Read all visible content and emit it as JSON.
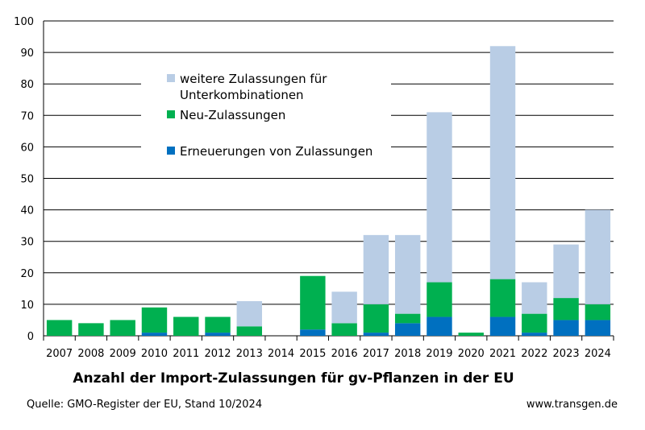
{
  "chart_data": {
    "type": "bar",
    "stacked": true,
    "title": "Anzahl der Import-Zulassungen für gv-Pflanzen in der EU",
    "xlabel": "",
    "ylabel": "",
    "ylim": [
      0,
      100
    ],
    "yticks": [
      0,
      10,
      20,
      30,
      40,
      50,
      60,
      70,
      80,
      90,
      100
    ],
    "grid": true,
    "legend_position": "top-left",
    "categories": [
      "2007",
      "2008",
      "2009",
      "2010",
      "2011",
      "2012",
      "2013",
      "2014",
      "2015",
      "2016",
      "2017",
      "2018",
      "2019",
      "2020",
      "2021",
      "2022",
      "2023",
      "2024"
    ],
    "series": [
      {
        "name": "Erneuerungen von Zulassungen",
        "color": "#0070C0",
        "values": [
          0,
          0,
          0,
          1,
          0,
          1,
          0,
          0,
          2,
          0,
          1,
          4,
          6,
          0,
          6,
          1,
          5,
          5
        ]
      },
      {
        "name": "Neu-Zulassungen",
        "color": "#00B050",
        "values": [
          5,
          4,
          5,
          8,
          6,
          5,
          3,
          0,
          17,
          4,
          9,
          3,
          11,
          1,
          12,
          6,
          7,
          5
        ]
      },
      {
        "name": "weitere Zulassungen für Unterkombinationen",
        "color": "#B9CDE5",
        "values": [
          0,
          0,
          0,
          0,
          0,
          0,
          8,
          0,
          0,
          10,
          22,
          25,
          54,
          0,
          74,
          10,
          17,
          30
        ]
      }
    ],
    "legend_lines": [
      [
        "weitere Zulassungen für",
        "Unterkombinationen"
      ],
      [
        "Neu-Zulassungen"
      ],
      [
        "Erneuerungen von Zulassungen"
      ]
    ]
  },
  "footer": {
    "source": "Quelle: GMO-Register der EU, Stand 10/2024",
    "website": "www.transgen.de"
  }
}
